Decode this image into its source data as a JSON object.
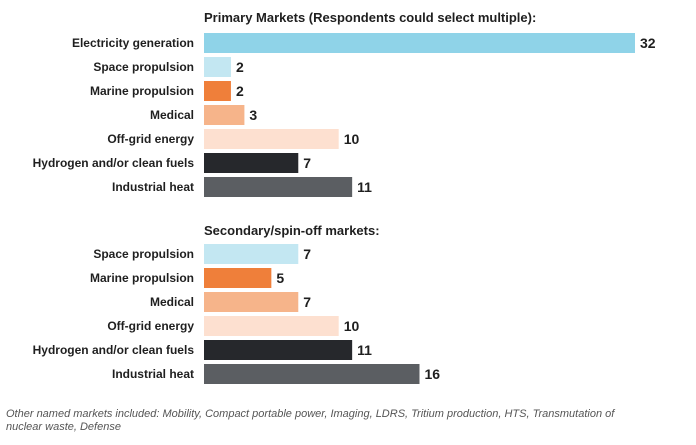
{
  "chart_data": [
    {
      "type": "bar",
      "orientation": "horizontal",
      "title": "Primary Markets (Respondents could select multiple):",
      "categories": [
        "Electricity generation",
        "Space propulsion",
        "Marine propulsion",
        "Medical",
        "Off-grid energy",
        "Hydrogen and/or clean fuels",
        "Industrial heat"
      ],
      "values": [
        32,
        2,
        2,
        3,
        10,
        7,
        11
      ],
      "colors": [
        "#8fd3e8",
        "#c3e7f2",
        "#ef7f3a",
        "#f6b48a",
        "#fde0d0",
        "#26282c",
        "#5b5e62"
      ],
      "xlim": [
        0,
        32
      ],
      "grid": false,
      "legend": "none"
    },
    {
      "type": "bar",
      "orientation": "horizontal",
      "title": "Secondary/spin-off markets:",
      "categories": [
        "Space propulsion",
        "Marine propulsion",
        "Medical",
        "Off-grid energy",
        "Hydrogen and/or clean fuels",
        "Industrial heat"
      ],
      "values": [
        7,
        5,
        7,
        10,
        11,
        16
      ],
      "colors": [
        "#c3e7f2",
        "#ef7f3a",
        "#f6b48a",
        "#fde0d0",
        "#26282c",
        "#5b5e62"
      ],
      "xlim": [
        0,
        32
      ],
      "grid": false,
      "legend": "none"
    }
  ],
  "footnote": "Other named markets included: Mobility, Compact portable power, Imaging, LDRS, Tritium production, HTS, Transmutation of nuclear waste, Defense"
}
